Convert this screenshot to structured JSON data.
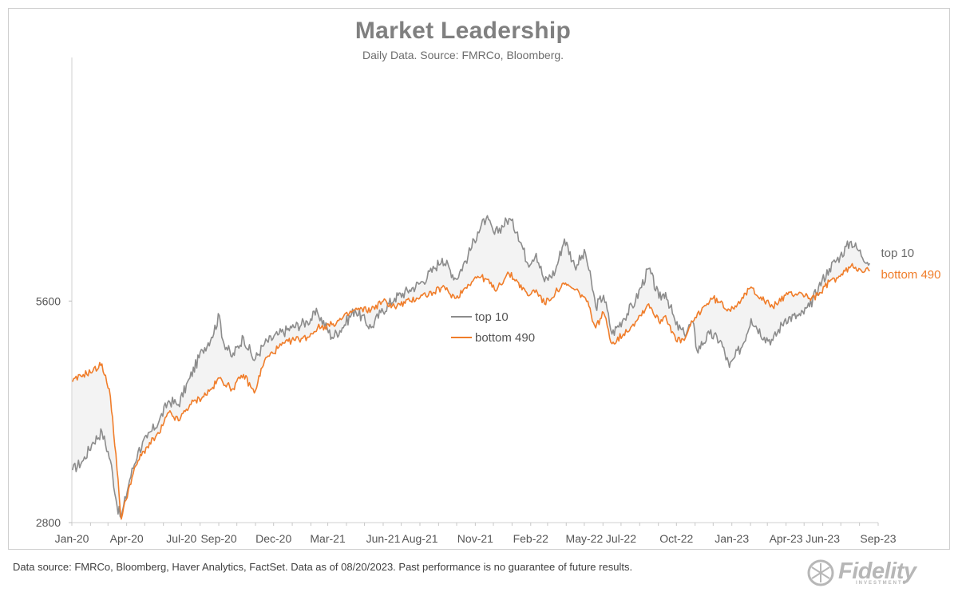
{
  "title": "Market Leadership",
  "subtitle": "Daily Data.  Source: FMRCo, Bloomberg.",
  "footer": "Data source: FMRCo, Bloomberg, Haver Analytics, FactSet. Data as of 08/20/2023. Past performance is no guarantee of future results.",
  "logo": {
    "text": "Fidelity",
    "sub": "INVESTMENTS"
  },
  "colors": {
    "top10": "#8c8c8c",
    "bottom490": "#f07d2a",
    "fill": "#efefef"
  },
  "chart_data": {
    "type": "line",
    "title": "Market Leadership",
    "subtitle": "Daily Data.  Source: FMRCo, Bloomberg.",
    "y_scale": "log",
    "ylim": [
      2800,
      12000
    ],
    "y_ticks": [
      2800,
      5600
    ],
    "x_range": [
      "2020-01-01",
      "2023-09-01"
    ],
    "x_ticks": [
      "Jan-20",
      "Apr-20",
      "Jul-20",
      "Sep-20",
      "Dec-20",
      "Mar-21",
      "Jun-21",
      "Aug-21",
      "Nov-21",
      "Feb-22",
      "May-22",
      "Jul-22",
      "Oct-22",
      "Jan-23",
      "Apr-23",
      "Jun-23",
      "Sep-23"
    ],
    "x_tick_dates": [
      "2020-01-01",
      "2020-04-01",
      "2020-07-01",
      "2020-09-01",
      "2020-12-01",
      "2021-03-01",
      "2021-06-01",
      "2021-08-01",
      "2021-11-01",
      "2022-02-01",
      "2022-05-01",
      "2022-07-01",
      "2022-10-01",
      "2023-01-01",
      "2023-04-01",
      "2023-06-01",
      "2023-09-01"
    ],
    "legend": {
      "placement": "center",
      "entries": [
        "top 10",
        "bottom 490"
      ]
    },
    "grid": false,
    "shading_between_series": true,
    "series": [
      {
        "name": "top 10",
        "color": "#8c8c8c",
        "end_label": "top 10",
        "points": [
          [
            "2020-01-02",
            3300
          ],
          [
            "2020-01-20",
            3400
          ],
          [
            "2020-02-05",
            3600
          ],
          [
            "2020-02-20",
            3720
          ],
          [
            "2020-03-05",
            3400
          ],
          [
            "2020-03-16",
            2950
          ],
          [
            "2020-03-23",
            2840
          ],
          [
            "2020-04-06",
            3200
          ],
          [
            "2020-04-20",
            3500
          ],
          [
            "2020-05-05",
            3650
          ],
          [
            "2020-05-25",
            3850
          ],
          [
            "2020-06-10",
            4100
          ],
          [
            "2020-06-26",
            4050
          ],
          [
            "2020-07-15",
            4400
          ],
          [
            "2020-08-05",
            4800
          ],
          [
            "2020-08-20",
            5000
          ],
          [
            "2020-09-02",
            5350
          ],
          [
            "2020-09-08",
            4950
          ],
          [
            "2020-09-23",
            4700
          ],
          [
            "2020-10-12",
            5000
          ],
          [
            "2020-10-30",
            4650
          ],
          [
            "2020-11-16",
            4900
          ],
          [
            "2020-12-10",
            5050
          ],
          [
            "2020-12-31",
            5150
          ],
          [
            "2021-01-26",
            5250
          ],
          [
            "2021-02-12",
            5400
          ],
          [
            "2021-03-08",
            5000
          ],
          [
            "2021-03-25",
            5150
          ],
          [
            "2021-04-15",
            5450
          ],
          [
            "2021-05-12",
            5150
          ],
          [
            "2021-05-28",
            5400
          ],
          [
            "2021-06-20",
            5650
          ],
          [
            "2021-07-15",
            5800
          ],
          [
            "2021-08-05",
            5950
          ],
          [
            "2021-08-25",
            6200
          ],
          [
            "2021-09-07",
            6400
          ],
          [
            "2021-09-30",
            6000
          ],
          [
            "2021-10-20",
            6450
          ],
          [
            "2021-11-05",
            6950
          ],
          [
            "2021-11-19",
            7250
          ],
          [
            "2021-12-03",
            6900
          ],
          [
            "2021-12-27",
            7250
          ],
          [
            "2022-01-10",
            6950
          ],
          [
            "2022-01-27",
            6300
          ],
          [
            "2022-02-10",
            6500
          ],
          [
            "2022-02-24",
            5950
          ],
          [
            "2022-03-14",
            6150
          ],
          [
            "2022-03-29",
            6800
          ],
          [
            "2022-04-15",
            6250
          ],
          [
            "2022-05-03",
            6500
          ],
          [
            "2022-05-20",
            5500
          ],
          [
            "2022-06-02",
            5700
          ],
          [
            "2022-06-16",
            5050
          ],
          [
            "2022-07-05",
            5300
          ],
          [
            "2022-07-25",
            5600
          ],
          [
            "2022-08-16",
            6200
          ],
          [
            "2022-09-02",
            5650
          ],
          [
            "2022-09-13",
            5750
          ],
          [
            "2022-09-30",
            5200
          ],
          [
            "2022-10-14",
            5050
          ],
          [
            "2022-10-28",
            5250
          ],
          [
            "2022-11-04",
            4800
          ],
          [
            "2022-11-25",
            5050
          ],
          [
            "2022-12-13",
            4950
          ],
          [
            "2022-12-28",
            4550
          ],
          [
            "2023-01-06",
            4700
          ],
          [
            "2023-01-20",
            4900
          ],
          [
            "2023-02-02",
            5300
          ],
          [
            "2023-02-24",
            5000
          ],
          [
            "2023-03-10",
            4950
          ],
          [
            "2023-03-31",
            5300
          ],
          [
            "2023-04-25",
            5350
          ],
          [
            "2023-05-10",
            5500
          ],
          [
            "2023-05-25",
            5850
          ],
          [
            "2023-06-12",
            6200
          ],
          [
            "2023-06-30",
            6450
          ],
          [
            "2023-07-18",
            6750
          ],
          [
            "2023-07-31",
            6550
          ],
          [
            "2023-08-18",
            6300
          ]
        ]
      },
      {
        "name": "bottom 490",
        "color": "#f07d2a",
        "end_label": "bottom 490",
        "points": [
          [
            "2020-01-02",
            4350
          ],
          [
            "2020-01-20",
            4450
          ],
          [
            "2020-02-05",
            4500
          ],
          [
            "2020-02-20",
            4600
          ],
          [
            "2020-03-05",
            4150
          ],
          [
            "2020-03-16",
            3300
          ],
          [
            "2020-03-23",
            2830
          ],
          [
            "2020-04-06",
            3150
          ],
          [
            "2020-04-20",
            3400
          ],
          [
            "2020-05-05",
            3550
          ],
          [
            "2020-05-25",
            3700
          ],
          [
            "2020-06-10",
            3950
          ],
          [
            "2020-06-26",
            3850
          ],
          [
            "2020-07-15",
            4050
          ],
          [
            "2020-08-05",
            4150
          ],
          [
            "2020-08-20",
            4250
          ],
          [
            "2020-09-02",
            4400
          ],
          [
            "2020-09-23",
            4250
          ],
          [
            "2020-10-12",
            4450
          ],
          [
            "2020-10-30",
            4200
          ],
          [
            "2020-11-16",
            4650
          ],
          [
            "2020-12-10",
            4850
          ],
          [
            "2020-12-31",
            4950
          ],
          [
            "2021-01-26",
            5000
          ],
          [
            "2021-02-12",
            5150
          ],
          [
            "2021-03-08",
            5200
          ],
          [
            "2021-03-25",
            5300
          ],
          [
            "2021-04-15",
            5450
          ],
          [
            "2021-05-12",
            5450
          ],
          [
            "2021-06-01",
            5600
          ],
          [
            "2021-06-20",
            5500
          ],
          [
            "2021-07-15",
            5600
          ],
          [
            "2021-08-05",
            5700
          ],
          [
            "2021-08-25",
            5750
          ],
          [
            "2021-09-07",
            5850
          ],
          [
            "2021-09-30",
            5650
          ],
          [
            "2021-10-20",
            5900
          ],
          [
            "2021-11-05",
            6050
          ],
          [
            "2021-11-19",
            6000
          ],
          [
            "2021-12-03",
            5800
          ],
          [
            "2021-12-27",
            6100
          ],
          [
            "2022-01-10",
            5950
          ],
          [
            "2022-01-27",
            5700
          ],
          [
            "2022-02-10",
            5800
          ],
          [
            "2022-02-24",
            5550
          ],
          [
            "2022-03-14",
            5750
          ],
          [
            "2022-03-29",
            5900
          ],
          [
            "2022-04-15",
            5800
          ],
          [
            "2022-05-03",
            5650
          ],
          [
            "2022-05-20",
            5150
          ],
          [
            "2022-06-02",
            5400
          ],
          [
            "2022-06-16",
            4900
          ],
          [
            "2022-07-05",
            5050
          ],
          [
            "2022-07-25",
            5250
          ],
          [
            "2022-08-16",
            5550
          ],
          [
            "2022-09-02",
            5250
          ],
          [
            "2022-09-13",
            5350
          ],
          [
            "2022-09-30",
            4950
          ],
          [
            "2022-10-14",
            4950
          ],
          [
            "2022-10-28",
            5250
          ],
          [
            "2022-11-15",
            5500
          ],
          [
            "2022-12-01",
            5650
          ],
          [
            "2022-12-28",
            5450
          ],
          [
            "2023-01-20",
            5650
          ],
          [
            "2023-02-02",
            5850
          ],
          [
            "2023-02-24",
            5600
          ],
          [
            "2023-03-10",
            5500
          ],
          [
            "2023-03-31",
            5700
          ],
          [
            "2023-04-25",
            5750
          ],
          [
            "2023-05-10",
            5650
          ],
          [
            "2023-05-25",
            5700
          ],
          [
            "2023-06-12",
            5950
          ],
          [
            "2023-06-30",
            6050
          ],
          [
            "2023-07-18",
            6250
          ],
          [
            "2023-07-31",
            6200
          ],
          [
            "2023-08-18",
            6150
          ]
        ]
      }
    ]
  }
}
